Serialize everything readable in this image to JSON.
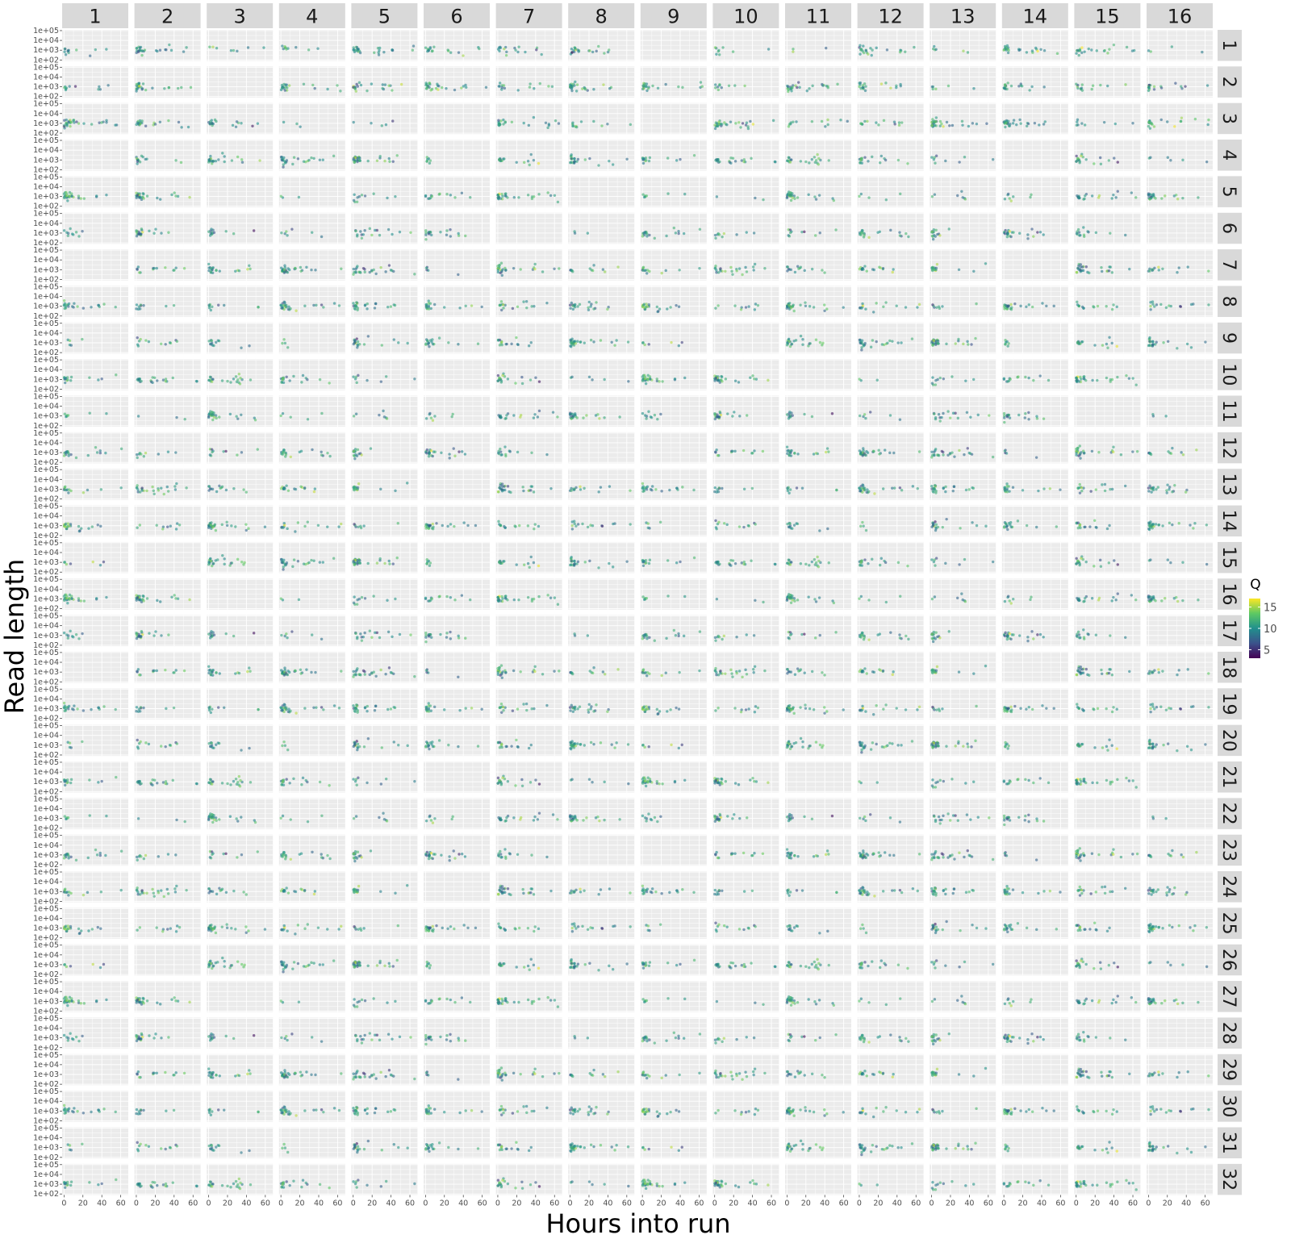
{
  "chart_data": {
    "type": "scatter",
    "facet_columns": [
      "1",
      "2",
      "3",
      "4",
      "5",
      "6",
      "7",
      "8",
      "9",
      "10",
      "11",
      "12",
      "13",
      "14",
      "15",
      "16"
    ],
    "facet_rows": [
      "1",
      "2",
      "3",
      "4",
      "5",
      "6",
      "7",
      "8",
      "9",
      "10",
      "11",
      "12",
      "13",
      "14",
      "15",
      "16",
      "17",
      "18",
      "19",
      "20",
      "21",
      "22",
      "23",
      "24",
      "25",
      "26",
      "27",
      "28",
      "29",
      "30",
      "31",
      "32"
    ],
    "xlabel": "Hours into run",
    "ylabel": "Read length",
    "x_ticks": [
      0,
      20,
      40,
      60
    ],
    "x_tick_labels": [
      "0",
      "20",
      "40",
      "60"
    ],
    "xlim": [
      -2,
      68
    ],
    "y_scale": "log10",
    "y_ticks": [
      100,
      1000,
      10000,
      100000
    ],
    "y_tick_labels": [
      "1e+02",
      "1e+03",
      "1e+04",
      "1e+05"
    ],
    "ylim": [
      80,
      120000
    ],
    "legend": {
      "title": "Q",
      "placement": "right",
      "range": [
        3,
        17
      ],
      "breaks": [
        5,
        10,
        15
      ],
      "labels": [
        "5",
        "10",
        "15"
      ],
      "colors": [
        "#440154",
        "#3b528b",
        "#21908d",
        "#5dc963",
        "#fde725"
      ]
    },
    "colors": {
      "panel_background": "#ebebeb",
      "grid": "#ffffff",
      "strip_background": "#d9d9d9"
    },
    "grid": true,
    "points_per_panel_approx": 22,
    "points_note_removed": true
  }
}
